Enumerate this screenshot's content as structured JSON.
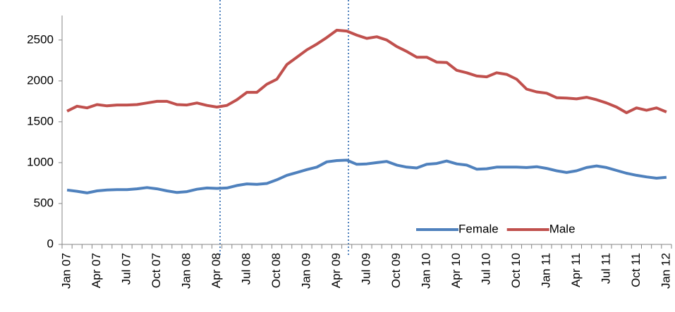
{
  "chart_data": {
    "type": "line",
    "categories": [
      "Jan 07",
      null,
      null,
      "Apr 07",
      null,
      null,
      "Jul 07",
      null,
      null,
      "Oct 07",
      null,
      null,
      "Jan 08",
      null,
      null,
      "Apr 08",
      null,
      null,
      "Jul 08",
      null,
      null,
      "Oct 08",
      null,
      null,
      "Jan 09",
      null,
      null,
      "Apr 09",
      null,
      null,
      "Jul 09",
      null,
      null,
      "Oct 09",
      null,
      null,
      "Jan 10",
      null,
      null,
      "Apr 10",
      null,
      null,
      "Jul 10",
      null,
      null,
      "Oct 10",
      null,
      null,
      "Jan 11",
      null,
      null,
      "Apr 11",
      null,
      null,
      "Jul 11",
      null,
      null,
      "Oct 11",
      null,
      null,
      "Jan 12"
    ],
    "series": [
      {
        "name": "Female",
        "color": "#4f81bd",
        "values": [
          665,
          650,
          630,
          655,
          665,
          670,
          670,
          680,
          695,
          680,
          655,
          635,
          645,
          675,
          690,
          685,
          690,
          720,
          740,
          735,
          745,
          790,
          845,
          880,
          915,
          945,
          1010,
          1025,
          1030,
          980,
          985,
          1000,
          1015,
          970,
          945,
          935,
          980,
          990,
          1020,
          985,
          970,
          920,
          925,
          945,
          945,
          945,
          940,
          950,
          930,
          900,
          880,
          900,
          940,
          960,
          940,
          905,
          870,
          845,
          825,
          810,
          820
        ]
      },
      {
        "name": "Male",
        "color": "#c0504d",
        "values": [
          1630,
          1690,
          1670,
          1710,
          1695,
          1705,
          1705,
          1710,
          1730,
          1750,
          1750,
          1710,
          1705,
          1730,
          1700,
          1680,
          1700,
          1770,
          1860,
          1860,
          1960,
          2020,
          2200,
          2290,
          2380,
          2450,
          2530,
          2620,
          2610,
          2560,
          2520,
          2540,
          2500,
          2420,
          2360,
          2290,
          2290,
          2230,
          2225,
          2130,
          2100,
          2060,
          2050,
          2100,
          2080,
          2020,
          1900,
          1865,
          1850,
          1795,
          1790,
          1780,
          1800,
          1770,
          1730,
          1680,
          1610,
          1670,
          1640,
          1670,
          1620
        ]
      }
    ],
    "ylim": [
      0,
      2800
    ],
    "yticks": [
      0,
      500,
      1000,
      1500,
      2000,
      2500
    ],
    "grid": false,
    "legend": "bottom-right"
  }
}
